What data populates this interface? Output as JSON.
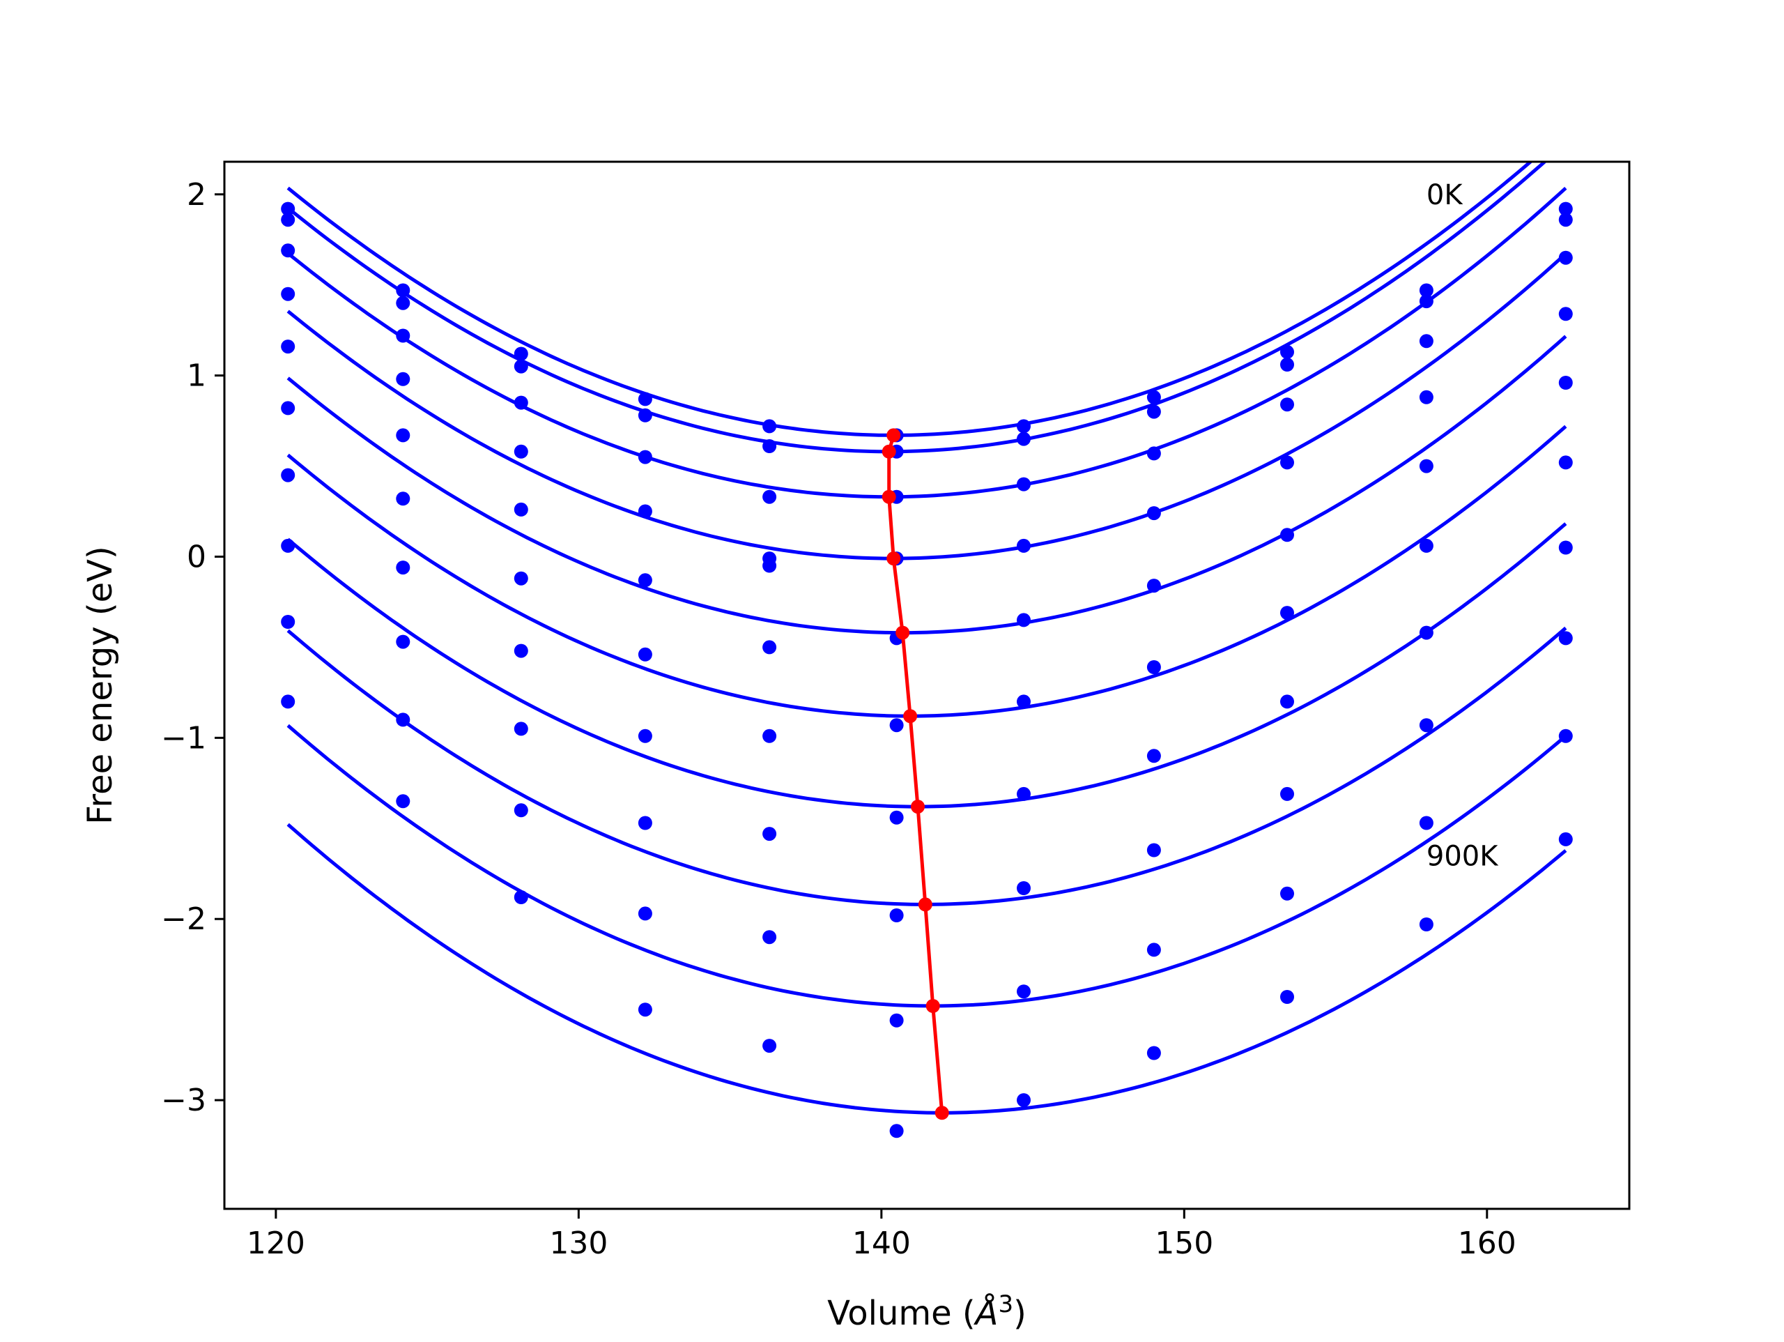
{
  "chart_data": {
    "type": "scatter",
    "title": "",
    "xlabel_main": "Volume (",
    "xlabel_unit": "Å",
    "xlabel_exp": "3",
    "xlabel_close": ")",
    "ylabel": "Free energy (eV)",
    "xlim": [
      118.3,
      164.7
    ],
    "ylim": [
      -3.6,
      2.18
    ],
    "xticks": [
      120,
      130,
      140,
      150,
      160
    ],
    "yticks": [
      2,
      1,
      0,
      -1,
      -2,
      -3
    ],
    "ytick_labels": [
      "2",
      "1",
      "0",
      "−1",
      "−2",
      "−3"
    ],
    "grid": false,
    "legend": "none",
    "annotations": [
      {
        "text": "0K",
        "x": 158.0,
        "y": 2.0
      },
      {
        "text": "900K",
        "x": 158.0,
        "y": -1.65
      }
    ],
    "colors": {
      "points": "#0000ff",
      "fits": "#0000ff",
      "minimum_path": "#ff0000",
      "axes": "#000000"
    },
    "volumes": [
      120.4,
      124.2,
      128.1,
      132.2,
      136.3,
      140.5,
      144.7,
      149.0,
      153.4,
      158.0,
      162.6
    ],
    "series": [
      {
        "values": [
          1.92,
          1.47,
          1.12,
          0.87,
          0.72,
          0.67,
          0.72,
          0.88,
          1.13,
          1.47,
          1.92
        ],
        "fit": {
          "a": 0.003412,
          "vmin": 140.4,
          "fmin": 0.67
        }
      },
      {
        "values": [
          1.86,
          1.4,
          1.05,
          0.78,
          0.61,
          0.58,
          0.65,
          0.8,
          1.06,
          1.41,
          1.86
        ],
        "fit": {
          "a": 0.003412,
          "vmin": 140.25,
          "fmin": 0.58
        }
      },
      {
        "values": [
          1.69,
          1.22,
          0.85,
          0.55,
          0.33,
          0.33,
          0.4,
          0.57,
          0.84,
          1.19,
          1.65
        ],
        "fit": {
          "a": 0.003412,
          "vmin": 140.25,
          "fmin": 0.33
        }
      },
      {
        "values": [
          1.45,
          0.98,
          0.58,
          0.25,
          -0.01,
          -0.01,
          0.06,
          0.24,
          0.52,
          0.88,
          1.34
        ],
        "fit": {
          "a": 0.003412,
          "vmin": 140.4,
          "fmin": -0.01
        }
      },
      {
        "values": [
          1.16,
          0.67,
          0.26,
          -0.13,
          -0.05,
          -0.45,
          -0.35,
          -0.16,
          0.12,
          0.5,
          0.96
        ],
        "fit": {
          "a": 0.003412,
          "vmin": 140.7,
          "fmin": -0.42
        }
      },
      {
        "values": [
          0.82,
          0.32,
          -0.12,
          -0.54,
          -0.5,
          -0.93,
          -0.8,
          -0.61,
          -0.31,
          0.06,
          0.52
        ],
        "fit": {
          "a": 0.003412,
          "vmin": 140.95,
          "fmin": -0.88
        }
      },
      {
        "values": [
          0.45,
          -0.06,
          -0.52,
          -0.99,
          -0.99,
          -1.44,
          -1.31,
          -1.1,
          -0.8,
          -0.42,
          0.05
        ],
        "fit": {
          "a": 0.003412,
          "vmin": 141.2,
          "fmin": -1.38
        }
      },
      {
        "values": [
          0.06,
          -0.47,
          -0.95,
          -1.47,
          -1.53,
          -1.98,
          -1.83,
          -1.62,
          -1.31,
          -0.93,
          -0.45
        ],
        "fit": {
          "a": 0.003412,
          "vmin": 141.45,
          "fmin": -1.92
        }
      },
      {
        "values": [
          -0.36,
          -0.9,
          -1.4,
          -1.97,
          -2.1,
          -2.56,
          -2.4,
          -2.17,
          -1.86,
          -1.47,
          -0.99
        ],
        "fit": {
          "a": 0.003412,
          "vmin": 141.7,
          "fmin": -2.48
        }
      },
      {
        "values": [
          -0.8,
          -1.35,
          -1.88,
          -2.5,
          -2.7,
          -3.17,
          -3.0,
          -2.74,
          -2.43,
          -2.03,
          -1.56
        ],
        "fit": {
          "a": 0.003412,
          "vmin": 142.0,
          "fmin": -3.07
        }
      }
    ],
    "minimum_path": {
      "x": [
        140.4,
        140.25,
        140.25,
        140.4,
        140.7,
        140.95,
        141.2,
        141.45,
        141.7,
        142.0
      ],
      "y": [
        0.67,
        0.58,
        0.33,
        -0.01,
        -0.42,
        -0.88,
        -1.38,
        -1.92,
        -2.48,
        -3.07
      ]
    }
  }
}
